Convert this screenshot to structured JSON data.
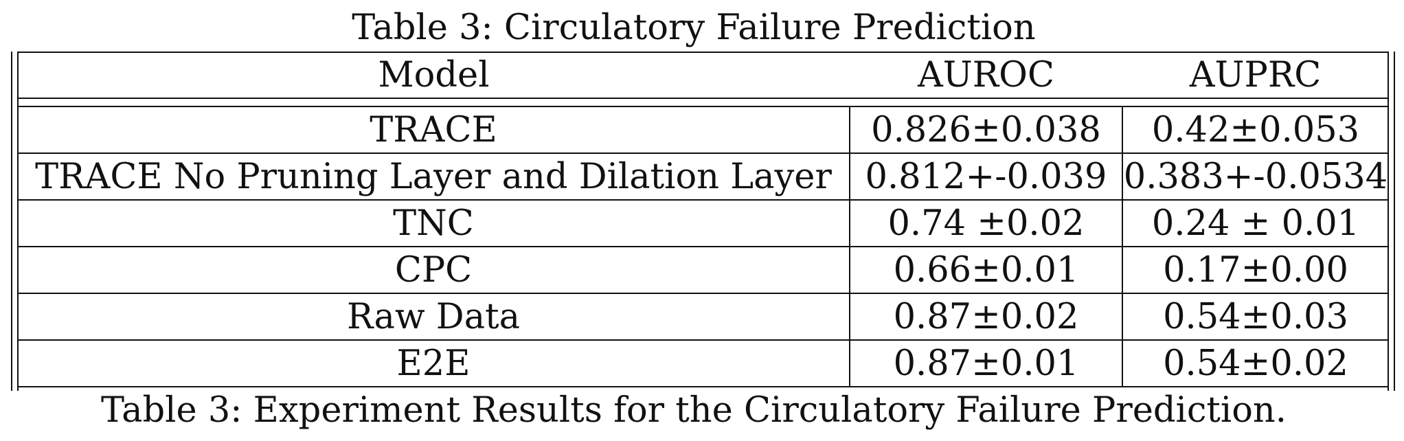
{
  "title": "Table 3: Circulatory Failure Prediction",
  "caption": "Table 3: Experiment Results for the Circulatory Failure Prediction.",
  "table": {
    "headers": [
      "Model",
      "AUROC",
      "AUPRC"
    ],
    "rows": [
      {
        "model": "TRACE",
        "auroc": "0.826±0.038",
        "auprc": "0.42±0.053"
      },
      {
        "model": "TRACE No Pruning Layer and Dilation Layer",
        "auroc": "0.812+-0.039",
        "auprc": "0.383+-0.0534"
      },
      {
        "model": "TNC",
        "auroc": "0.74 ±0.02",
        "auprc": "0.24 ± 0.01"
      },
      {
        "model": "CPC",
        "auroc": "0.66±0.01",
        "auprc": "0.17±0.00"
      },
      {
        "model": "Raw Data",
        "auroc": "0.87±0.02",
        "auprc": "0.54±0.03"
      },
      {
        "model": "E2E",
        "auroc": "0.87±0.01",
        "auprc": "0.54±0.02"
      }
    ]
  }
}
